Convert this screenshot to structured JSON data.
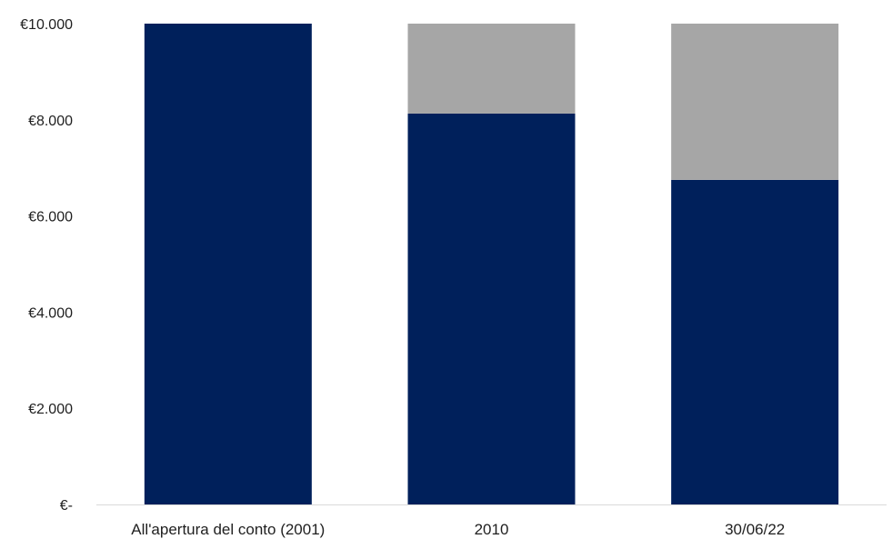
{
  "chart_data": {
    "type": "bar",
    "stacked": true,
    "title": "",
    "xlabel": "",
    "ylabel": "",
    "categories": [
      "All'apertura del conto (2001)",
      "2010",
      "30/06/22"
    ],
    "series": [
      {
        "color": "#00205b",
        "values": [
          10000,
          8130,
          6750
        ]
      },
      {
        "color": "#a6a6a6",
        "values": [
          0,
          1870,
          3250
        ]
      }
    ],
    "ylim": [
      0,
      10000
    ],
    "yticks": [
      0,
      2000,
      4000,
      6000,
      8000,
      10000
    ],
    "ytick_labels": [
      "€-",
      "€2.000",
      "€4.000",
      "€6.000",
      "€8.000",
      "€10.000"
    ],
    "grid": false,
    "legend": "none"
  }
}
